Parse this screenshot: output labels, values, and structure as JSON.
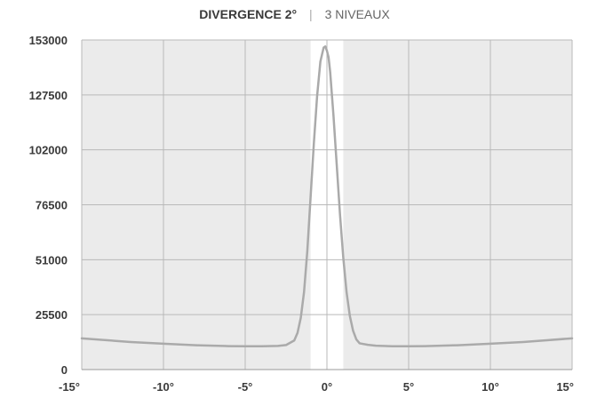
{
  "chart_data": {
    "type": "line",
    "title": "DIVERGENCE 2°",
    "subtitle": "3 NIVEAUX",
    "xlabel": "",
    "ylabel": "",
    "xlim": [
      -15,
      15
    ],
    "ylim": [
      0,
      153000
    ],
    "grid": true,
    "x_ticks": [
      -15,
      -10,
      -5,
      0,
      5,
      10,
      15
    ],
    "x_tick_labels": [
      "-15°",
      "-10°",
      "-5°",
      "0°",
      "5°",
      "10°",
      "15°"
    ],
    "y_ticks": [
      0,
      25500,
      51000,
      76500,
      102000,
      127500,
      153000
    ],
    "y_tick_labels": [
      "0",
      "25500",
      "51000",
      "76500",
      "102000",
      "127500",
      "153000"
    ],
    "highlight_band": [
      -1,
      1
    ],
    "colors": {
      "plot_bg": "#ebebeb",
      "band": "#ffffff",
      "grid": "#b9b9b9",
      "line": "#aaaaaa"
    },
    "series": [
      {
        "x": [
          -15,
          -12,
          -10,
          -8,
          -6,
          -5,
          -4,
          -3,
          -2.5,
          -2,
          -1.8,
          -1.6,
          -1.4,
          -1.2,
          -1,
          -0.8,
          -0.6,
          -0.4,
          -0.2,
          -0.1,
          0,
          0.1,
          0.2,
          0.4,
          0.6,
          0.8,
          1,
          1.2,
          1.4,
          1.6,
          1.8,
          2,
          2.5,
          3,
          4,
          5,
          6,
          8,
          10,
          12,
          15
        ],
        "y": [
          14500,
          12800,
          12000,
          11300,
          10900,
          10800,
          10800,
          11000,
          11400,
          13500,
          17000,
          24000,
          36000,
          55000,
          80000,
          105000,
          127000,
          143000,
          149500,
          150000,
          148000,
          145000,
          138000,
          118000,
          95000,
          72000,
          52000,
          36000,
          25000,
          18000,
          14000,
          12200,
          11500,
          11100,
          10800,
          10800,
          10900,
          11300,
          12000,
          12800,
          14500
        ]
      }
    ]
  }
}
